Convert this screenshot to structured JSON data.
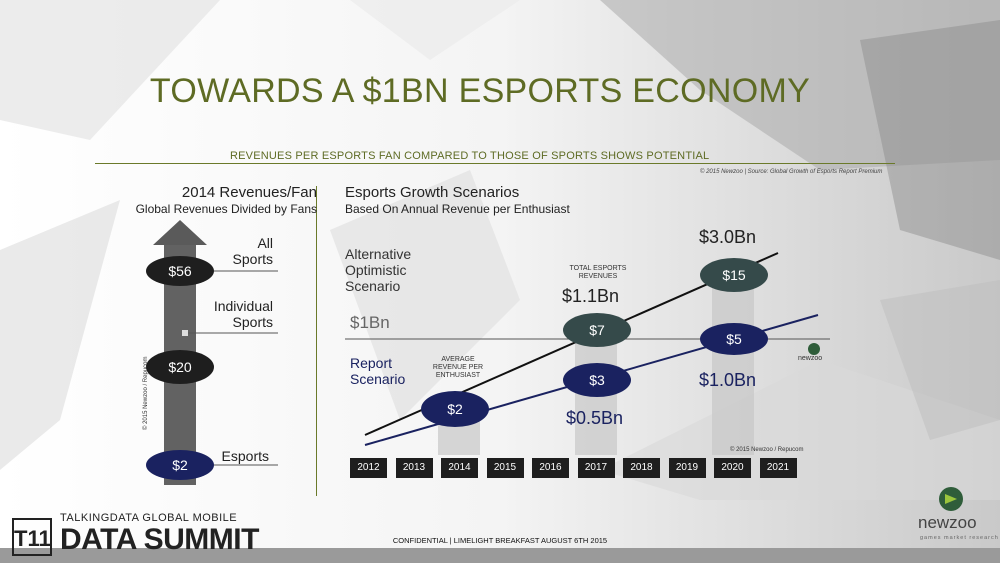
{
  "header": {
    "title": "TOWARDS A $1BN ESPORTS ECONOMY",
    "subtitle": "REVENUES PER ESPORTS FAN COMPARED TO THOSE OF SPORTS SHOWS POTENTIAL",
    "copyright": "© 2015 Newzoo | Source: Global Growth of Esports Report Premium"
  },
  "left_panel": {
    "heading": "2014 Revenues/Fan",
    "subheading": "Global Revenues Divided by Fans",
    "copyright_vertical": "© 2015 Newzoo / Repucom"
  },
  "right_panel": {
    "heading": "Esports Growth Scenarios",
    "subheading": "Based On Annual Revenue per Enthusiast",
    "alt_scenario_label": "Alternative Optimistic Scenario",
    "report_scenario_label": "Report Scenario",
    "threshold_label": "$1Bn",
    "avg_rev_caption": "AVERAGE REVENUE PER ENTHUSIAST",
    "total_rev_caption": "TOTAL ESPORTS REVENUES",
    "copyright": "© 2015 Newzoo / Repucom",
    "logo_small_word": "newzoo"
  },
  "chart_data": [
    {
      "type": "bar",
      "title": "2014 Revenues/Fan",
      "subtitle": "Global Revenues Divided by Fans",
      "categories": [
        "All Sports",
        "Individual Sports",
        "Esports"
      ],
      "values": [
        56,
        20,
        2
      ],
      "value_labels": [
        "$56",
        "$20",
        "$2"
      ],
      "category_labels": [
        [
          "All",
          "Sports"
        ],
        [
          "Individual",
          "Sports"
        ],
        [
          "Esports"
        ]
      ],
      "colors": {
        "sports": "#1e1e1e",
        "esports": "#1a2260",
        "arrow": "#5a5a5a"
      }
    },
    {
      "type": "line",
      "title": "Esports Growth Scenarios",
      "subtitle": "Based On Annual Revenue per Enthusiast",
      "x": [
        "2012",
        "2013",
        "2014",
        "2015",
        "2016",
        "2017",
        "2018",
        "2019",
        "2020",
        "2021"
      ],
      "series": [
        {
          "name": "Alternative Optimistic Scenario",
          "color": "#111111",
          "points": [
            {
              "x": "2014",
              "rev_per_fan": null
            },
            {
              "x": "2017",
              "rev_per_fan": 7,
              "label": "$7",
              "total": "$1.1Bn"
            },
            {
              "x": "2020",
              "rev_per_fan": 15,
              "label": "$15",
              "total": "$3.0Bn"
            }
          ]
        },
        {
          "name": "Report Scenario",
          "color": "#1a2260",
          "points": [
            {
              "x": "2014",
              "rev_per_fan": 2,
              "label": "$2"
            },
            {
              "x": "2017",
              "rev_per_fan": 3,
              "label": "$3",
              "total": "$0.5Bn"
            },
            {
              "x": "2020",
              "rev_per_fan": 5,
              "label": "$5",
              "total": "$1.0Bn"
            }
          ]
        }
      ],
      "threshold": {
        "label": "$1Bn"
      },
      "colors": {
        "optimistic_badge": "#354a4a",
        "report_badge": "#1a2260",
        "threshold_line": "#555555",
        "year_box": "#1e1e1e"
      }
    }
  ],
  "footer": {
    "confidential": "CONFIDENTIAL | LIMELIGHT BREAKFAST AUGUST 6TH 2015",
    "event_small": "TALKINGDATA GLOBAL MOBILE",
    "event_big": "DATA SUMMIT",
    "event_mark": "T11",
    "company": "newzoo",
    "company_tag": "games market research"
  }
}
